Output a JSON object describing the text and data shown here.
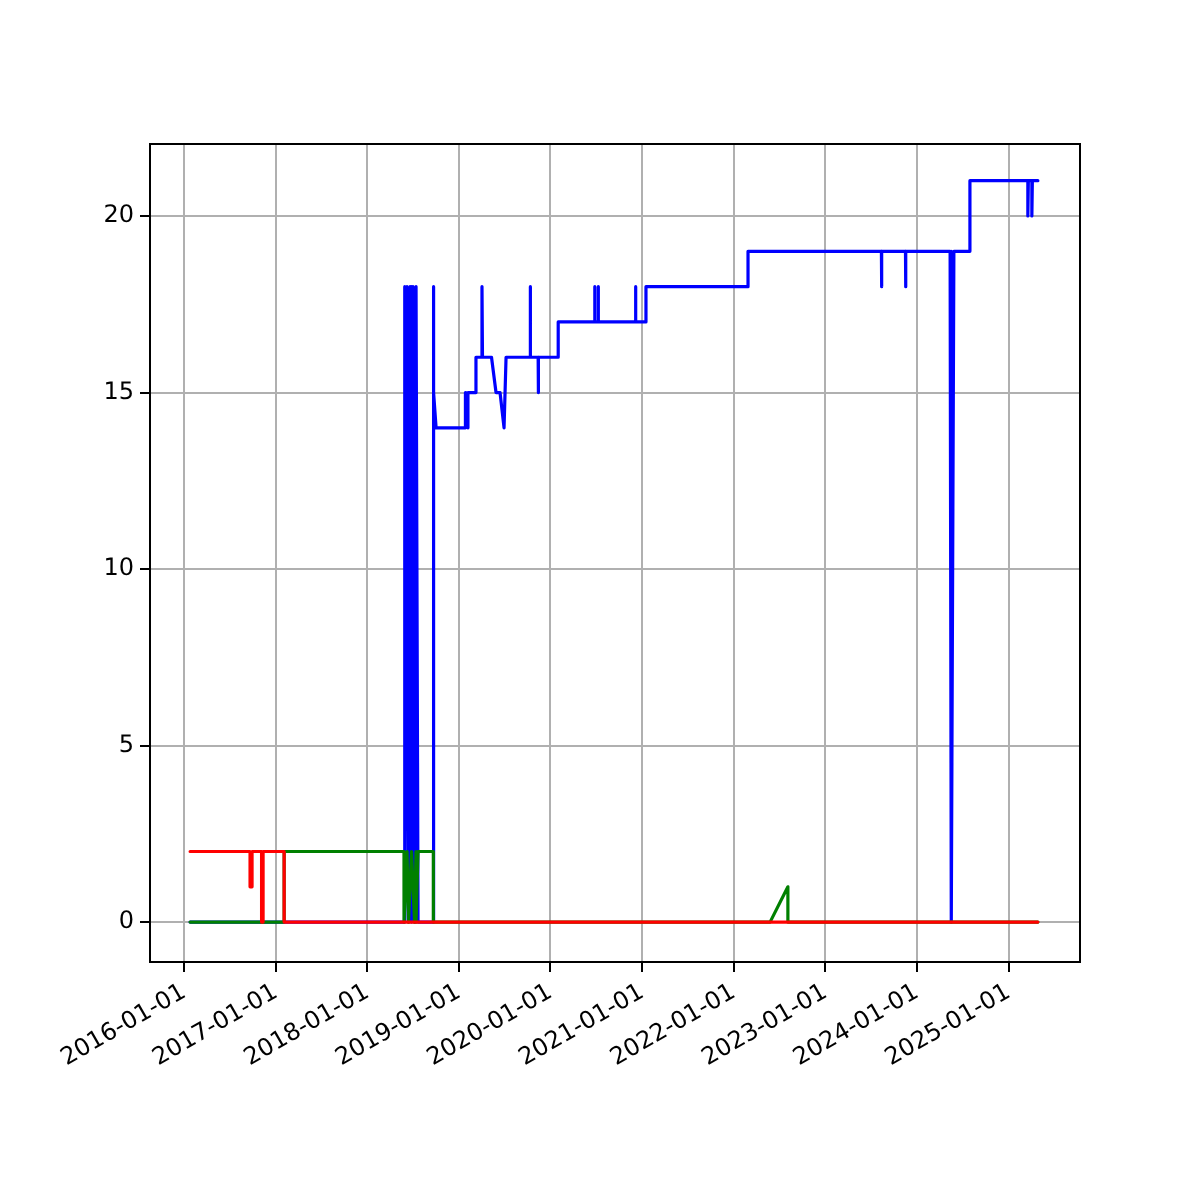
{
  "chart_data": {
    "type": "line",
    "xlim": [
      "2015-08-18",
      "2025-10-13"
    ],
    "ylim": [
      -1.13,
      22.04
    ],
    "xticks": [
      "2016-01-01",
      "2017-01-01",
      "2018-01-01",
      "2019-01-01",
      "2020-01-01",
      "2021-01-01",
      "2022-01-01",
      "2023-01-01",
      "2024-01-01",
      "2025-01-01"
    ],
    "yticks": [
      0,
      5,
      10,
      15,
      20
    ],
    "grid": true,
    "legend": false,
    "marker": "none",
    "line_style": "solid",
    "series": [
      {
        "color": "#0000ff",
        "x": [
          "2016-01-25",
          "2018-05-27",
          "2018-05-27",
          "2018-06-02",
          "2018-06-08",
          "2018-06-14",
          "2018-06-20",
          "2018-06-26",
          "2018-07-02",
          "2018-07-08",
          "2018-07-14",
          "2018-07-22",
          "2018-09-21",
          "2018-09-21",
          "2018-09-23",
          "2018-10-02",
          "2019-01-27",
          "2019-01-27",
          "2019-02-06",
          "2019-02-06",
          "2019-03-10",
          "2019-03-10",
          "2019-04-03",
          "2019-04-03",
          "2019-04-05",
          "2019-05-11",
          "2019-05-29",
          "2019-06-14",
          "2019-06-30",
          "2019-07-08",
          "2019-10-12",
          "2019-10-12",
          "2019-10-14",
          "2019-11-13",
          "2019-11-13",
          "2019-11-15",
          "2020-02-01",
          "2020-02-01",
          "2020-06-25",
          "2020-06-25",
          "2020-06-27",
          "2020-07-09",
          "2020-07-09",
          "2020-07-11",
          "2020-12-05",
          "2020-12-05",
          "2020-12-07",
          "2021-01-16",
          "2021-01-16",
          "2022-02-27",
          "2022-02-27",
          "2023-08-13",
          "2023-08-13",
          "2023-08-15",
          "2023-11-17",
          "2023-11-17",
          "2023-11-19",
          "2024-05-13",
          "2024-05-13",
          "2024-05-20",
          "2024-05-20",
          "2024-05-28",
          "2024-07-31",
          "2024-07-31",
          "2025-03-19",
          "2025-03-19",
          "2025-03-21",
          "2025-04-04",
          "2025-04-04",
          "2025-04-06",
          "2025-04-28"
        ],
        "values": [
          0,
          0,
          18,
          0,
          18,
          0,
          18,
          0,
          18,
          0,
          18,
          0,
          0,
          18,
          15,
          14,
          14,
          15,
          14,
          15,
          15,
          16,
          16,
          18,
          16,
          16,
          15,
          15,
          14,
          16,
          16,
          18,
          16,
          16,
          15,
          16,
          16,
          17,
          17,
          18,
          17,
          17,
          18,
          17,
          17,
          18,
          17,
          17,
          18,
          18,
          19,
          19,
          18,
          19,
          19,
          18,
          19,
          19,
          0,
          19,
          0,
          19,
          19,
          21,
          21,
          20,
          21,
          21,
          20,
          21,
          21
        ]
      },
      {
        "color": "#008000",
        "x": [
          "2016-01-25",
          "2017-02-03",
          "2017-02-03",
          "2018-05-27",
          "2018-05-27",
          "2018-06-08",
          "2018-06-14",
          "2018-06-26",
          "2018-07-08",
          "2018-07-14",
          "2018-07-14",
          "2018-07-22",
          "2018-09-21",
          "2018-09-21",
          "2022-05-26",
          "2022-08-05",
          "2022-08-05",
          "2025-04-28"
        ],
        "values": [
          0,
          0,
          2,
          2,
          0,
          2,
          0,
          2,
          0,
          2,
          0,
          2,
          2,
          0,
          0,
          1,
          0,
          0
        ]
      },
      {
        "color": "#ff0000",
        "x": [
          "2016-01-25",
          "2016-09-20",
          "2016-09-20",
          "2016-09-28",
          "2016-09-28",
          "2016-11-05",
          "2016-11-05",
          "2016-11-11",
          "2016-11-11",
          "2017-02-03",
          "2017-02-03",
          "2025-04-28"
        ],
        "values": [
          2,
          2,
          1,
          1,
          2,
          2,
          0,
          0,
          2,
          2,
          0,
          0
        ]
      }
    ]
  }
}
